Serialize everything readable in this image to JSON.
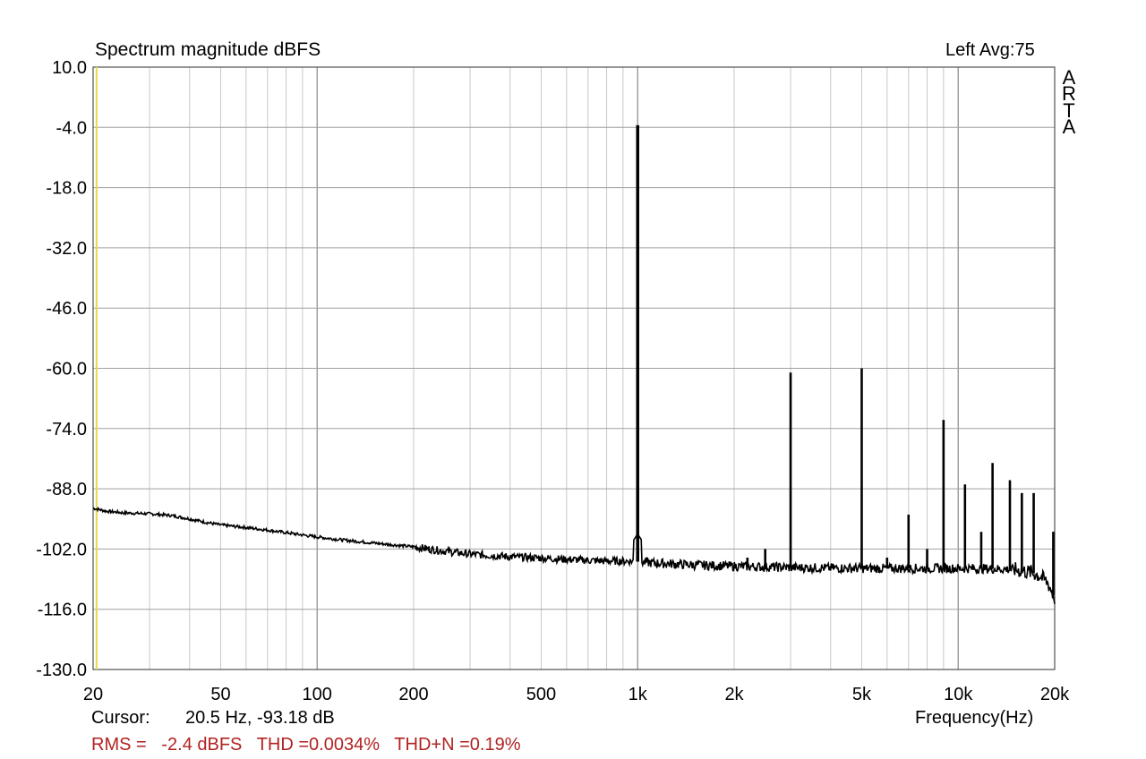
{
  "chart_data": {
    "type": "line",
    "title": "Spectrum magnitude dBFS",
    "top_right_label": "Left  Avg:75",
    "brand": "ARTA",
    "xlabel": "Frequency(Hz)",
    "x_scale": "log",
    "xlim": [
      20,
      20000
    ],
    "ylim": [
      -130,
      10
    ],
    "grid": true,
    "x_ticks": [
      {
        "value": 20,
        "label": "20"
      },
      {
        "value": 50,
        "label": "50"
      },
      {
        "value": 100,
        "label": "100"
      },
      {
        "value": 200,
        "label": "200"
      },
      {
        "value": 500,
        "label": "500"
      },
      {
        "value": 1000,
        "label": "1k"
      },
      {
        "value": 2000,
        "label": "2k"
      },
      {
        "value": 5000,
        "label": "5k"
      },
      {
        "value": 10000,
        "label": "10k"
      },
      {
        "value": 20000,
        "label": "20k"
      }
    ],
    "y_ticks": [
      {
        "value": 10,
        "label": "10.0"
      },
      {
        "value": -4,
        "label": "-4.0"
      },
      {
        "value": -18,
        "label": "-18.0"
      },
      {
        "value": -32,
        "label": "-32.0"
      },
      {
        "value": -46,
        "label": "-46.0"
      },
      {
        "value": -60,
        "label": "-60.0"
      },
      {
        "value": -74,
        "label": "-74.0"
      },
      {
        "value": -88,
        "label": "-88.0"
      },
      {
        "value": -102,
        "label": "-102.0"
      },
      {
        "value": -116,
        "label": "-116.0"
      },
      {
        "value": -130,
        "label": "-130.0"
      }
    ],
    "series": [
      {
        "color": "#000000",
        "noise_floor": [
          [
            20,
            -92.5
          ],
          [
            22,
            -93.2
          ],
          [
            25,
            -93.6
          ],
          [
            30,
            -93.8
          ],
          [
            35,
            -94.2
          ],
          [
            40,
            -95.0
          ],
          [
            45,
            -95.8
          ],
          [
            50,
            -96.4
          ],
          [
            60,
            -97.0
          ],
          [
            70,
            -97.6
          ],
          [
            80,
            -98.2
          ],
          [
            100,
            -99.2
          ],
          [
            120,
            -99.9
          ],
          [
            150,
            -100.6
          ],
          [
            200,
            -101.5
          ],
          [
            250,
            -102.5
          ],
          [
            300,
            -103.2
          ],
          [
            400,
            -103.8
          ],
          [
            500,
            -104.1
          ],
          [
            600,
            -104.4
          ],
          [
            800,
            -104.8
          ],
          [
            950,
            -104.8
          ],
          [
            1100,
            -105.2
          ],
          [
            1500,
            -105.7
          ],
          [
            2000,
            -106.0
          ],
          [
            3000,
            -106.3
          ],
          [
            5000,
            -106.5
          ],
          [
            7000,
            -106.5
          ],
          [
            10000,
            -106.5
          ],
          [
            13000,
            -106.6
          ],
          [
            15000,
            -106.8
          ],
          [
            17000,
            -107.5
          ],
          [
            18000,
            -108.3
          ],
          [
            19000,
            -109.8
          ],
          [
            19500,
            -111.5
          ],
          [
            20000,
            -113.5
          ]
        ],
        "peaks": [
          {
            "freq": 1000,
            "db": -3.5
          },
          {
            "freq": 2200,
            "db": -104.0
          },
          {
            "freq": 2500,
            "db": -102.0
          },
          {
            "freq": 3000,
            "db": -61.0
          },
          {
            "freq": 4000,
            "db": -106.0
          },
          {
            "freq": 5000,
            "db": -60.0
          },
          {
            "freq": 6000,
            "db": -104.0
          },
          {
            "freq": 7000,
            "db": -94.0
          },
          {
            "freq": 8000,
            "db": -102.0
          },
          {
            "freq": 9000,
            "db": -72.0
          },
          {
            "freq": 10500,
            "db": -87.0
          },
          {
            "freq": 11800,
            "db": -98.0
          },
          {
            "freq": 12800,
            "db": -82.0
          },
          {
            "freq": 14500,
            "db": -86.0
          },
          {
            "freq": 15800,
            "db": -89.0
          },
          {
            "freq": 17200,
            "db": -89.0
          },
          {
            "freq": 19800,
            "db": -98.0
          }
        ]
      }
    ],
    "cursor": {
      "freq": 20.5,
      "color": "#e8d84a"
    }
  },
  "readouts": {
    "cursor_label": "Cursor:",
    "cursor_value": "20.5 Hz, -93.18 dB",
    "rms": "RMS =   -2.4 dBFS   THD =0.0034%   THD+N =0.19%"
  }
}
